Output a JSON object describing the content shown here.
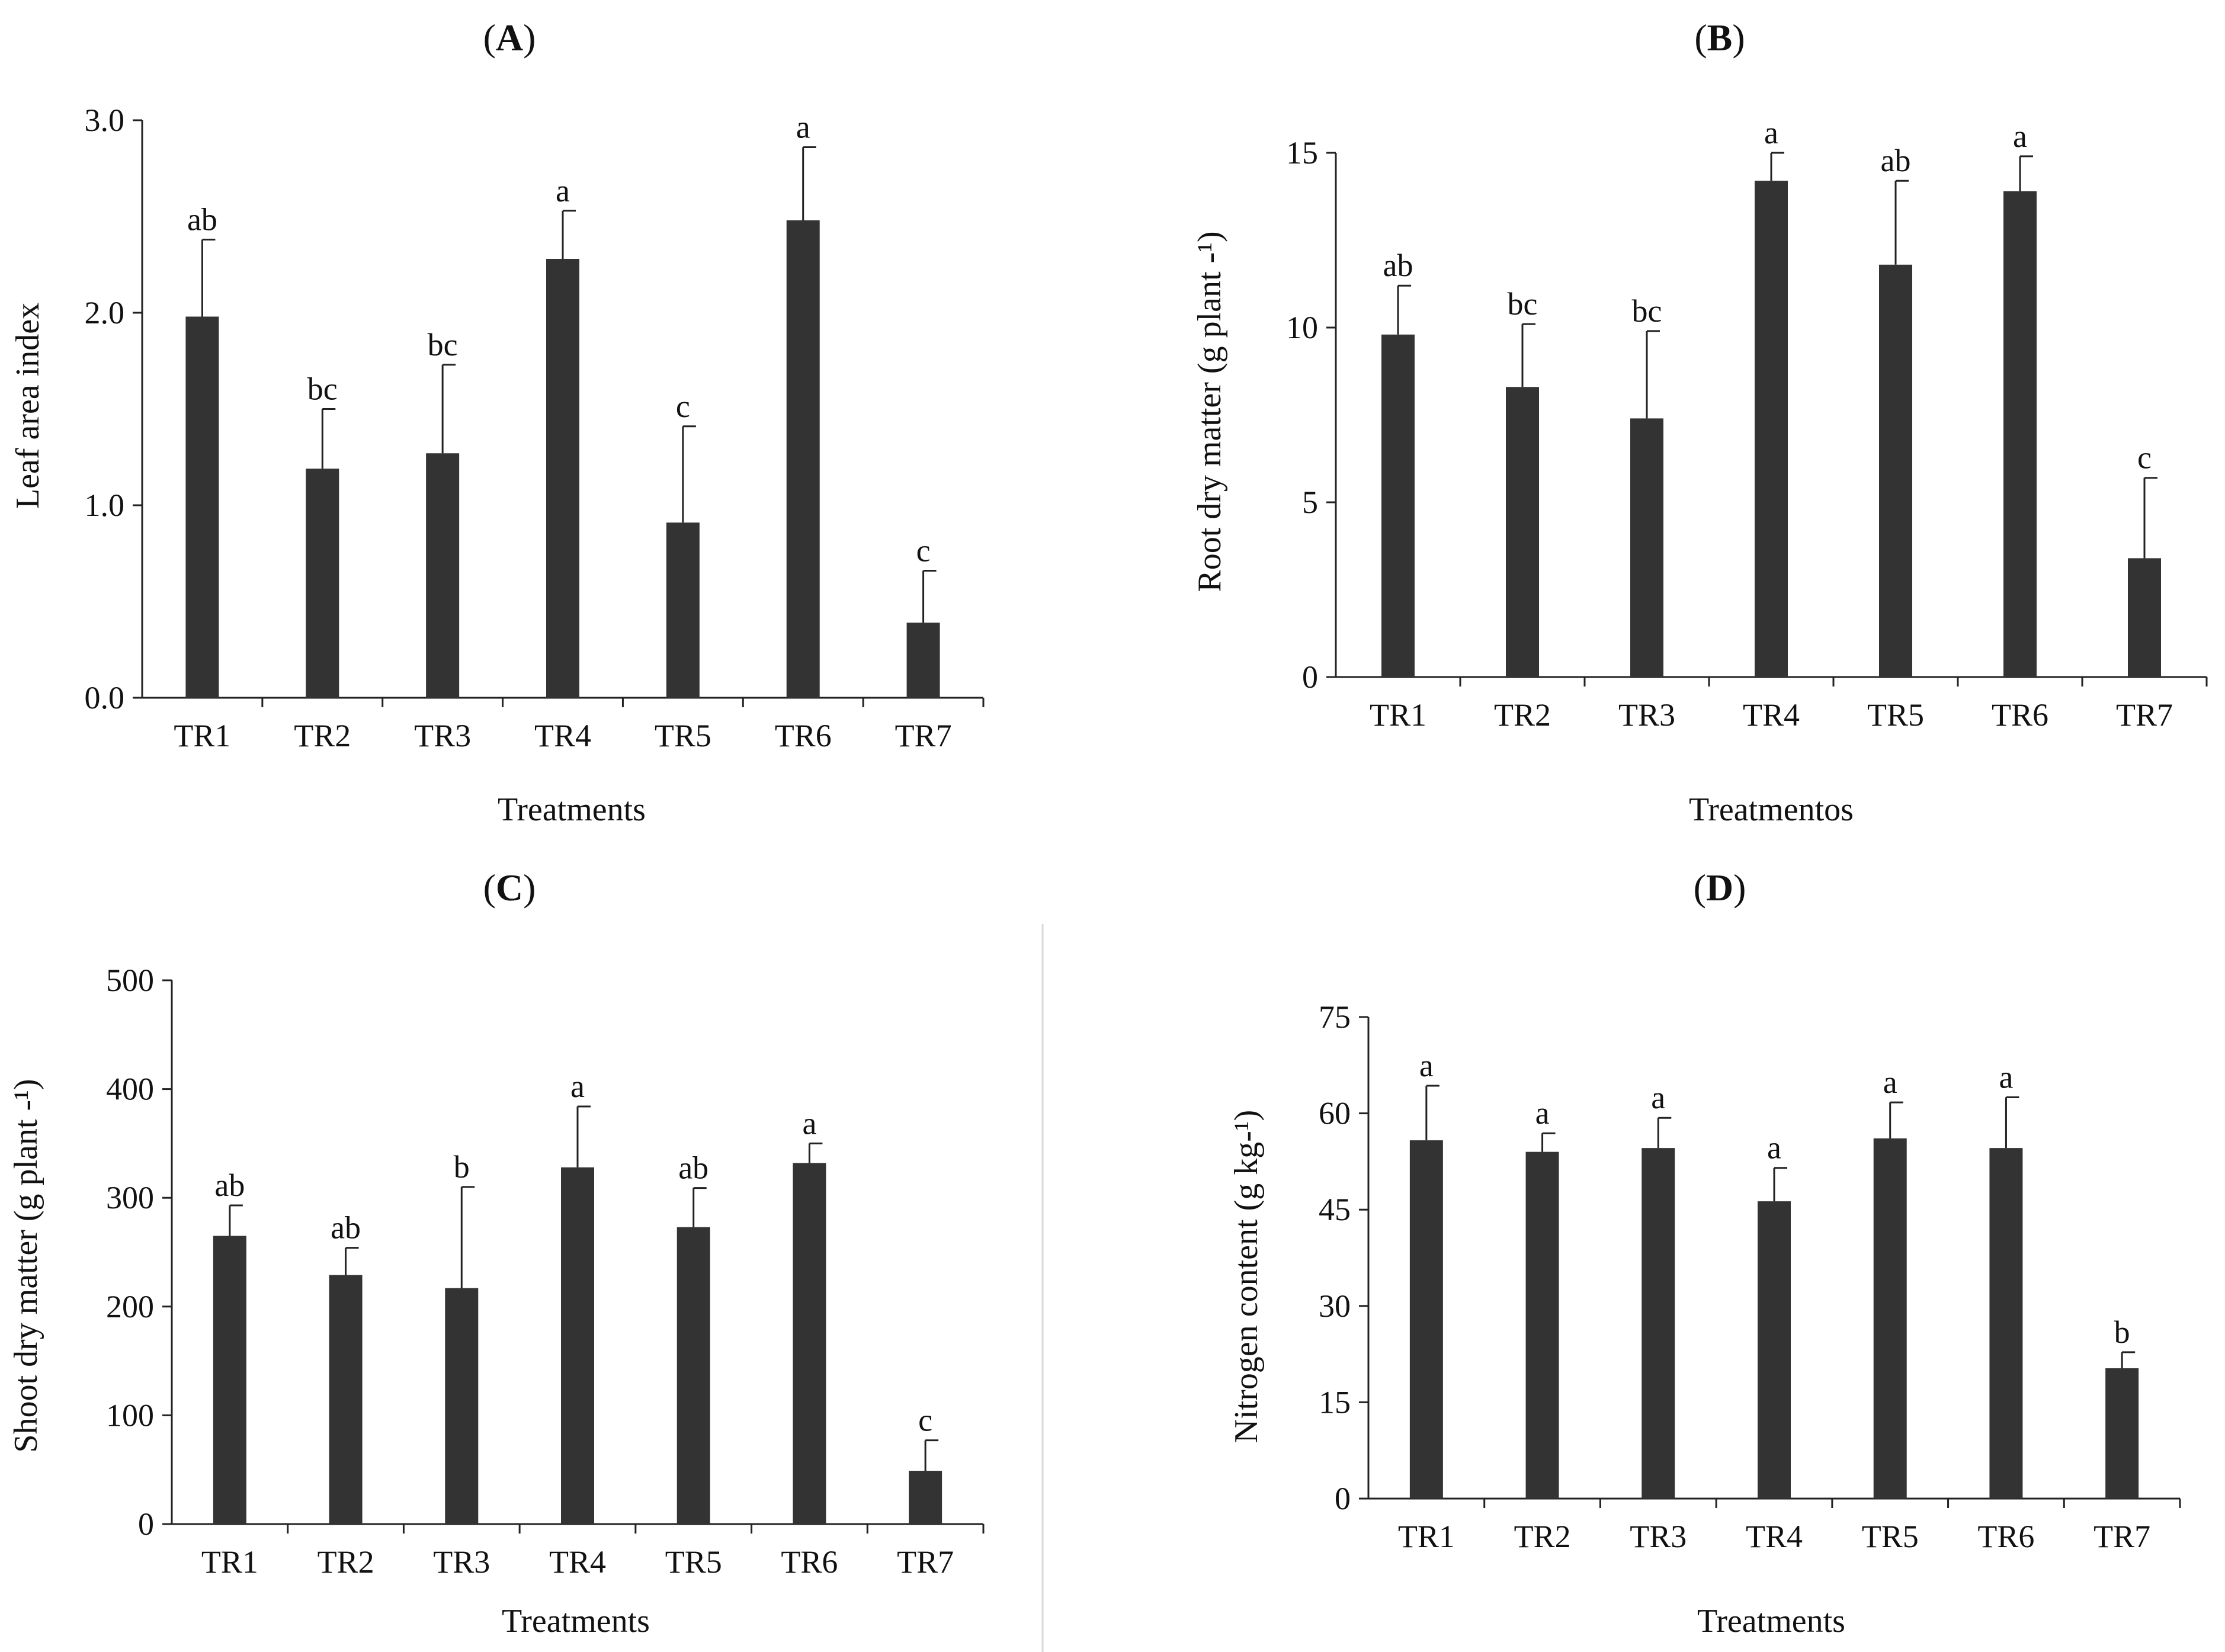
{
  "colors": {
    "bar": "#333333",
    "axis": "#222222",
    "text": "#111111",
    "divider": "#d8d8d8"
  },
  "chart_data": [
    {
      "panel": "A",
      "panel_label": [
        "(",
        "A",
        ")"
      ],
      "type": "bar",
      "categories": [
        "TR1",
        "TR2",
        "TR3",
        "TR4",
        "TR5",
        "TR6",
        "TR7"
      ],
      "values": [
        1.98,
        1.19,
        1.27,
        2.28,
        0.91,
        2.48,
        0.39
      ],
      "errors": [
        0.4,
        0.31,
        0.46,
        0.25,
        0.5,
        0.38,
        0.27
      ],
      "letters": [
        "ab",
        "bc",
        "bc",
        "a",
        "c",
        "a",
        "c"
      ],
      "xlabel": "Treatments",
      "ylabel": "Leaf area index",
      "ylim": [
        0,
        3.0
      ],
      "yticks": [
        0,
        1,
        2,
        3
      ],
      "ytick_labels": [
        "0.0",
        "1.0",
        "2.0",
        "3.0"
      ]
    },
    {
      "panel": "B",
      "panel_label": [
        "(",
        "B",
        ")"
      ],
      "type": "bar",
      "categories": [
        "TR1",
        "TR2",
        "TR3",
        "TR4",
        "TR5",
        "TR6",
        "TR7"
      ],
      "values": [
        9.8,
        8.3,
        7.4,
        14.2,
        11.8,
        13.9,
        3.4
      ],
      "errors": [
        1.4,
        1.8,
        2.5,
        0.8,
        2.4,
        1.0,
        2.3
      ],
      "letters": [
        "ab",
        "bc",
        "bc",
        "a",
        "ab",
        "a",
        "c"
      ],
      "xlabel": "Treatmentos",
      "ylabel": "Root dry matter (g plant -¹)",
      "ylim": [
        0,
        15
      ],
      "yticks": [
        0,
        5,
        10,
        15
      ],
      "ytick_labels": [
        "0",
        "5",
        "10",
        "15"
      ]
    },
    {
      "panel": "C",
      "panel_label": [
        "(",
        "C",
        ")"
      ],
      "type": "bar",
      "categories": [
        "TR1",
        "TR2",
        "TR3",
        "TR4",
        "TR5",
        "TR6",
        "TR7"
      ],
      "values": [
        265,
        229,
        217,
        328,
        273,
        332,
        49
      ],
      "errors": [
        28,
        25,
        93,
        56,
        36,
        18,
        28
      ],
      "letters": [
        "ab",
        "ab",
        "b",
        "a",
        "ab",
        "a",
        "c"
      ],
      "xlabel": "Treatments",
      "ylabel": "Shoot dry matter (g plant -¹)",
      "ylim": [
        0,
        500
      ],
      "yticks": [
        0,
        100,
        200,
        300,
        400,
        500
      ],
      "ytick_labels": [
        "0",
        "100",
        "200",
        "300",
        "400",
        "500"
      ]
    },
    {
      "panel": "D",
      "panel_label": [
        "(",
        "D",
        ")"
      ],
      "type": "bar",
      "categories": [
        "TR1",
        "TR2",
        "TR3",
        "TR4",
        "TR5",
        "TR6",
        "TR7"
      ],
      "values": [
        55.8,
        54.0,
        54.6,
        46.3,
        56.1,
        54.6,
        20.3
      ],
      "errors": [
        8.5,
        2.9,
        4.7,
        5.2,
        5.6,
        7.9,
        2.5
      ],
      "letters": [
        "a",
        "a",
        "a",
        "a",
        "a",
        "a",
        "b"
      ],
      "xlabel": "Treatments",
      "ylabel": "Nitrogen content (g kg-¹)",
      "ylim": [
        0,
        75
      ],
      "yticks": [
        0,
        15,
        30,
        45,
        60,
        75
      ],
      "ytick_labels": [
        "0",
        "15",
        "30",
        "45",
        "60",
        "75"
      ]
    }
  ]
}
